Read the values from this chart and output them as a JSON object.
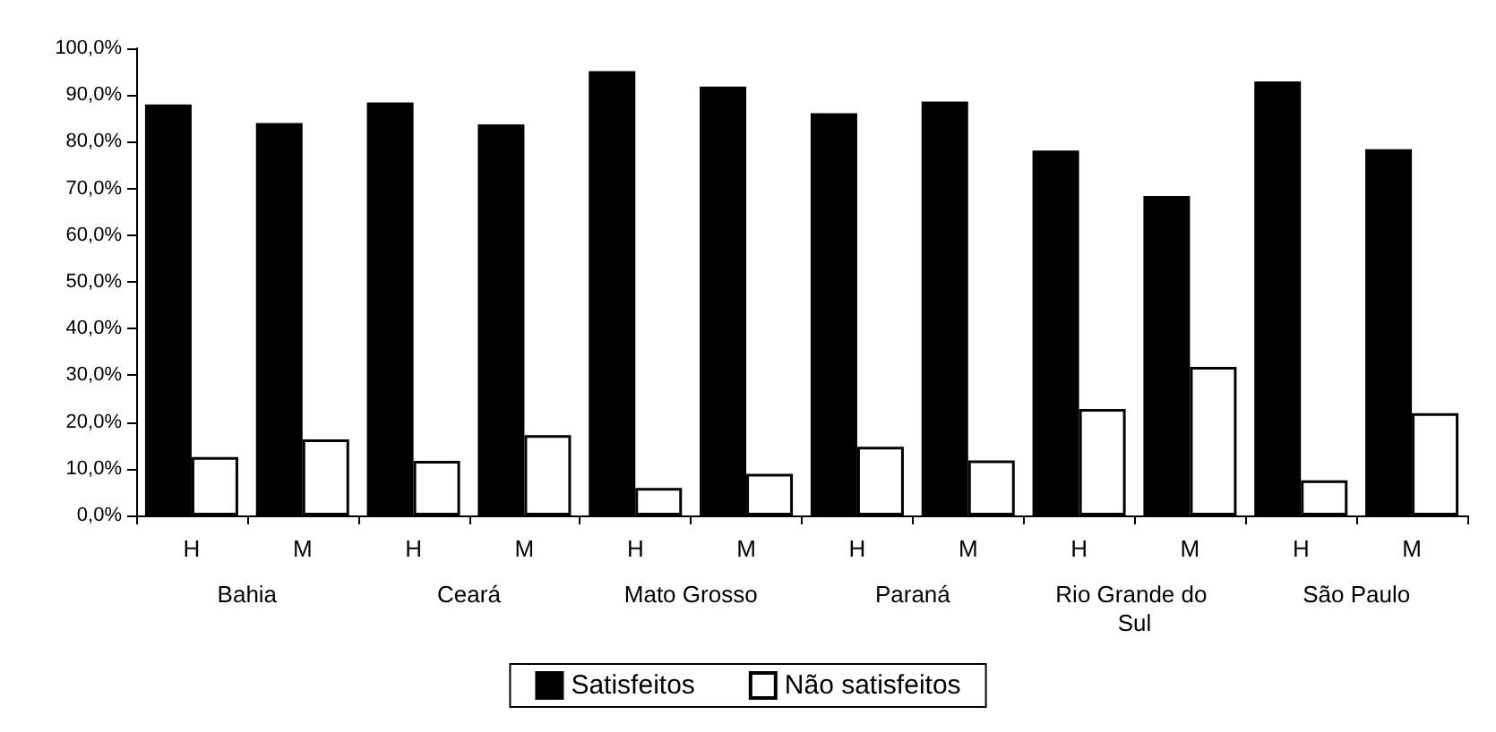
{
  "chart_data": {
    "type": "bar",
    "categories": [
      "H",
      "M",
      "H",
      "M",
      "H",
      "M",
      "H",
      "M",
      "H",
      "M",
      "H",
      "M"
    ],
    "annotations": [
      "Bahia",
      "Ceará",
      "Mato Grosso",
      "Paraná",
      "Rio Grande do Sul",
      "São Paulo"
    ],
    "series": [
      {
        "name": "Satisfeitos",
        "color": "#000000",
        "values": [
          88.0,
          84.0,
          88.4,
          83.7,
          95.1,
          91.8,
          86.1,
          88.6,
          78.1,
          68.4,
          92.9,
          78.4
        ]
      },
      {
        "name": "Não satisfeitos",
        "color": "#ffffff",
        "values": [
          12.5,
          16.3,
          11.7,
          17.2,
          5.9,
          8.9,
          14.7,
          11.8,
          22.8,
          31.8,
          7.5,
          21.9
        ]
      }
    ],
    "ylim": [
      0,
      100
    ],
    "yticks": [
      {
        "value": 0,
        "label": "0,0%"
      },
      {
        "value": 10,
        "label": "10,0%"
      },
      {
        "value": 20,
        "label": "20,0%"
      },
      {
        "value": 30,
        "label": "30,0%"
      },
      {
        "value": 40,
        "label": "40,0%"
      },
      {
        "value": 50,
        "label": "50,0%"
      },
      {
        "value": 60,
        "label": "60,0%"
      },
      {
        "value": 70,
        "label": "70,0%"
      },
      {
        "value": 80,
        "label": "80,0%"
      },
      {
        "value": 90,
        "label": "90,0%"
      },
      {
        "value": 100,
        "label": "100,0%"
      }
    ],
    "grid": false,
    "legend": "bottom"
  }
}
